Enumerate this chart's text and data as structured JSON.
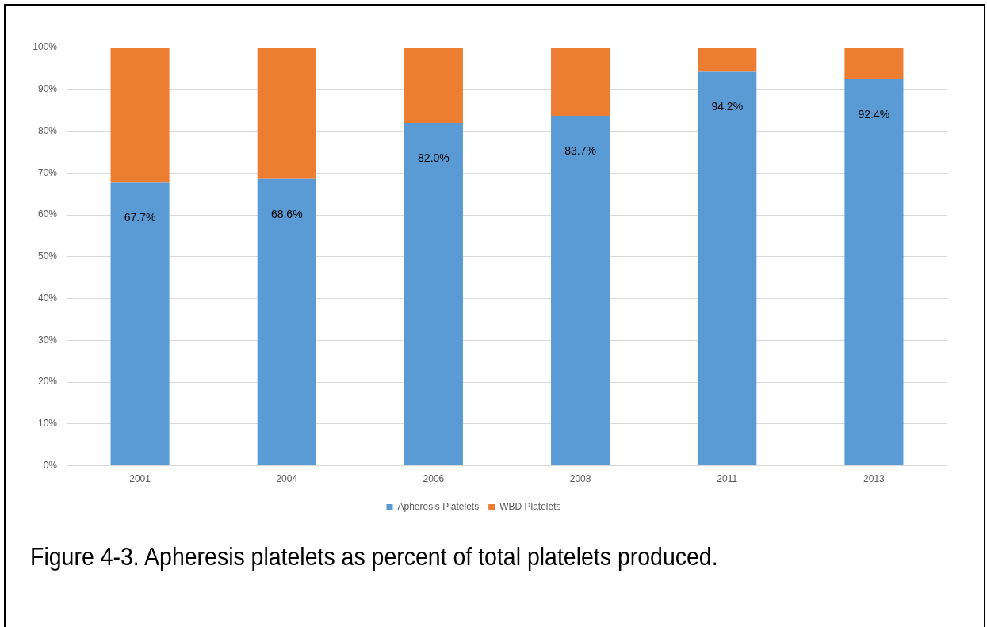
{
  "chart_data": {
    "type": "bar",
    "stacked": true,
    "categories": [
      "2001",
      "2004",
      "2006",
      "2008",
      "2011",
      "2013"
    ],
    "series": [
      {
        "name": "Apheresis Platelets",
        "color": "#5b9bd5",
        "values": [
          67.7,
          68.6,
          82.0,
          83.7,
          94.2,
          92.4
        ],
        "value_labels": [
          "67.7%",
          "68.6%",
          "82.0%",
          "83.7%",
          "94.2%",
          "92.4%"
        ]
      },
      {
        "name": "WBD Platelets",
        "color": "#ed7d31",
        "values": [
          32.3,
          31.4,
          18.0,
          16.3,
          5.8,
          7.6
        ]
      }
    ],
    "ylim": [
      0,
      100
    ],
    "yticks": [
      {
        "value": 0,
        "label": "0%"
      },
      {
        "value": 10,
        "label": "10%"
      },
      {
        "value": 20,
        "label": "20%"
      },
      {
        "value": 30,
        "label": "30%"
      },
      {
        "value": 40,
        "label": "40%"
      },
      {
        "value": 50,
        "label": "50%"
      },
      {
        "value": 60,
        "label": "60%"
      },
      {
        "value": 70,
        "label": "70%"
      },
      {
        "value": 80,
        "label": "80%"
      },
      {
        "value": 90,
        "label": "90%"
      },
      {
        "value": 100,
        "label": "100%"
      }
    ],
    "grid": "y",
    "legend": "bottom",
    "annotations": [
      "Figure 4-3. Apheresis platelets as percent of total platelets produced."
    ]
  }
}
